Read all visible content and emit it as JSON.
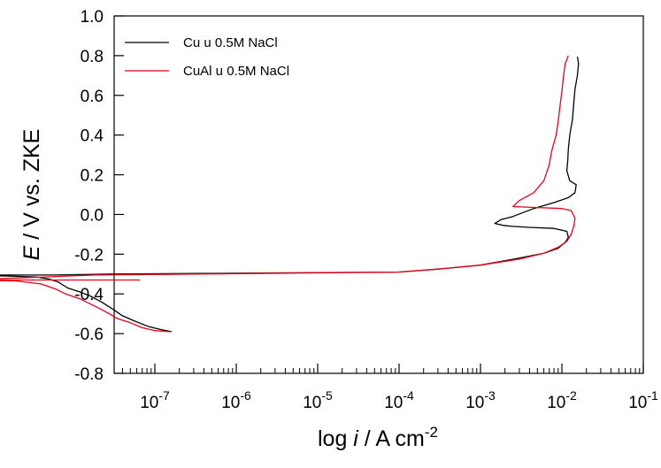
{
  "chart_data": {
    "type": "line",
    "xlabel": {
      "prefix": "log ",
      "var": "i",
      "suffix": " / A cm",
      "sup": "-2"
    },
    "ylabel": {
      "var": "E",
      "suffix": " / V vs. ZKE"
    },
    "x_scale": "log",
    "xlim_log10": [
      -7.5,
      -1
    ],
    "ylim": [
      -0.8,
      1.0
    ],
    "x_ticks": [
      {
        "base": "10",
        "exp": "-7",
        "log10": -7
      },
      {
        "base": "10",
        "exp": "-6",
        "log10": -6
      },
      {
        "base": "10",
        "exp": "-5",
        "log10": -5
      },
      {
        "base": "10",
        "exp": "-4",
        "log10": -4
      },
      {
        "base": "10",
        "exp": "-3",
        "log10": -3
      },
      {
        "base": "10",
        "exp": "-2",
        "log10": -2
      },
      {
        "base": "10",
        "exp": "-1",
        "log10": -1
      }
    ],
    "y_ticks": [
      "-0.8",
      "-0.6",
      "-0.4",
      "-0.2",
      "0.0",
      "0.2",
      "0.4",
      "0.6",
      "0.8",
      "1.0"
    ],
    "y_tick_values": [
      -0.8,
      -0.6,
      -0.4,
      -0.2,
      0.0,
      0.2,
      0.4,
      0.6,
      0.8,
      1.0
    ],
    "grid": false,
    "legend_position": "top-left",
    "series": [
      {
        "name": "Cu u 0.5M NaCl",
        "color": "#000000",
        "points": [
          [
            1.6e-07,
            -0.59
          ],
          [
            1.2e-07,
            -0.58
          ],
          [
            8.5e-08,
            -0.565
          ],
          [
            5.5e-08,
            -0.535
          ],
          [
            4e-08,
            -0.51
          ],
          [
            3e-08,
            -0.475
          ],
          [
            2.2e-08,
            -0.44
          ],
          [
            1.6e-08,
            -0.41
          ],
          [
            1.2e-08,
            -0.39
          ],
          [
            8.5e-09,
            -0.37
          ],
          [
            6.5e-09,
            -0.34
          ],
          [
            5e-09,
            -0.325
          ],
          [
            3.5e-09,
            -0.315
          ],
          [
            1.5e-09,
            -0.31
          ],
          [
            5.5e-10,
            -0.305
          ],
          [
            5.5e-09,
            -0.305
          ],
          [
            3e-08,
            -0.3
          ],
          [
            0.0001,
            -0.29
          ],
          [
            0.0003,
            -0.275
          ],
          [
            0.001,
            -0.255
          ],
          [
            0.003,
            -0.22
          ],
          [
            0.006,
            -0.195
          ],
          [
            0.009,
            -0.17
          ],
          [
            0.011,
            -0.14
          ],
          [
            0.012,
            -0.115
          ],
          [
            0.0115,
            -0.085
          ],
          [
            0.008,
            -0.07
          ],
          [
            0.004,
            -0.065
          ],
          [
            0.0025,
            -0.06
          ],
          [
            0.0019,
            -0.055
          ],
          [
            0.0015,
            -0.045
          ],
          [
            0.0018,
            -0.025
          ],
          [
            0.0025,
            -0.01
          ],
          [
            0.0045,
            0.03
          ],
          [
            0.008,
            0.06
          ],
          [
            0.012,
            0.085
          ],
          [
            0.0145,
            0.11
          ],
          [
            0.015,
            0.15
          ],
          [
            0.0125,
            0.17
          ],
          [
            0.0115,
            0.22
          ],
          [
            0.0118,
            0.27
          ],
          [
            0.012,
            0.33
          ],
          [
            0.0125,
            0.4
          ],
          [
            0.0135,
            0.48
          ],
          [
            0.014,
            0.56
          ],
          [
            0.0145,
            0.63
          ],
          [
            0.0155,
            0.7
          ],
          [
            0.016,
            0.76
          ],
          [
            0.0155,
            0.795
          ]
        ]
      },
      {
        "name": "CuAl u 0.5M NaCl",
        "color": "#e8001c",
        "points": [
          [
            1.5e-07,
            -0.59
          ],
          [
            1e-07,
            -0.585
          ],
          [
            7e-08,
            -0.57
          ],
          [
            5e-08,
            -0.545
          ],
          [
            3.5e-08,
            -0.525
          ],
          [
            2.5e-08,
            -0.49
          ],
          [
            1.8e-08,
            -0.46
          ],
          [
            1.2e-08,
            -0.425
          ],
          [
            8e-09,
            -0.4
          ],
          [
            6e-09,
            -0.375
          ],
          [
            4e-09,
            -0.35
          ],
          [
            2e-09,
            -0.335
          ],
          [
            6e-10,
            -0.33
          ],
          [
            6.5e-08,
            -0.33
          ],
          [
            6.5e-10,
            -0.33
          ],
          [
            1.5e-09,
            -0.322
          ],
          [
            4.5e-09,
            -0.315
          ],
          [
            1.8e-08,
            -0.305
          ],
          [
            0.0001,
            -0.29
          ],
          [
            0.0003,
            -0.275
          ],
          [
            0.001,
            -0.255
          ],
          [
            0.003,
            -0.225
          ],
          [
            0.006,
            -0.195
          ],
          [
            0.009,
            -0.165
          ],
          [
            0.0115,
            -0.135
          ],
          [
            0.013,
            -0.1
          ],
          [
            0.014,
            -0.06
          ],
          [
            0.0145,
            -0.02
          ],
          [
            0.013,
            0.02
          ],
          [
            0.01,
            0.03
          ],
          [
            0.005,
            0.035
          ],
          [
            0.0025,
            0.04
          ],
          [
            0.003,
            0.07
          ],
          [
            0.0045,
            0.11
          ],
          [
            0.006,
            0.17
          ],
          [
            0.007,
            0.25
          ],
          [
            0.0075,
            0.32
          ],
          [
            0.0085,
            0.4
          ],
          [
            0.009,
            0.47
          ],
          [
            0.0095,
            0.55
          ],
          [
            0.01,
            0.62
          ],
          [
            0.0105,
            0.7
          ],
          [
            0.011,
            0.76
          ],
          [
            0.012,
            0.8
          ]
        ]
      }
    ]
  }
}
